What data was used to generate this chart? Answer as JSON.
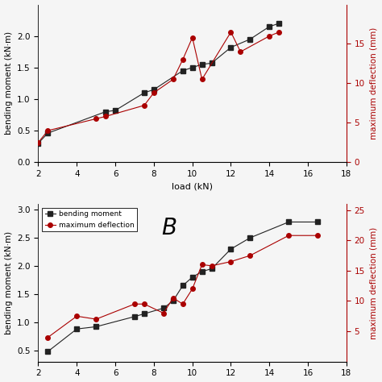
{
  "top": {
    "bm_x": [
      2.0,
      2.5,
      5.5,
      6.0,
      7.5,
      8.0,
      9.5,
      10.0,
      10.5,
      11.0,
      12.0,
      13.0,
      14.0,
      14.5
    ],
    "bm_y": [
      0.3,
      0.46,
      0.8,
      0.82,
      1.1,
      1.15,
      1.45,
      1.5,
      1.55,
      1.57,
      1.82,
      1.95,
      2.15,
      2.2
    ],
    "def_x": [
      2.0,
      2.5,
      5.0,
      5.5,
      7.5,
      8.0,
      9.0,
      9.5,
      10.0,
      10.5,
      12.0,
      12.5,
      14.0,
      14.5
    ],
    "def_y": [
      2.5,
      4.0,
      5.5,
      5.8,
      7.2,
      8.8,
      10.5,
      13.0,
      15.8,
      10.5,
      16.5,
      14.0,
      16.0,
      16.5
    ],
    "xlabel": "load (kN)",
    "ylabel_left": "bending moment (kN·m)",
    "ylabel_right": "maximum deflection (mm)",
    "xlim": [
      2,
      18
    ],
    "ylim_left": [
      0.0,
      2.5
    ],
    "ylim_right": [
      0,
      20
    ],
    "xticks": [
      2,
      4,
      6,
      8,
      10,
      12,
      14,
      16,
      18
    ],
    "yticks_left": [
      0.0,
      0.5,
      1.0,
      1.5,
      2.0
    ],
    "yticks_right": [
      0,
      5,
      10,
      15
    ]
  },
  "bottom": {
    "bm_x": [
      2.5,
      4.0,
      5.0,
      7.0,
      7.5,
      8.5,
      9.0,
      9.5,
      10.0,
      10.5,
      11.0,
      12.0,
      13.0,
      15.0,
      16.5
    ],
    "bm_y": [
      0.48,
      0.88,
      0.92,
      1.1,
      1.15,
      1.25,
      1.38,
      1.65,
      1.8,
      1.9,
      1.95,
      2.3,
      2.5,
      2.78,
      2.78
    ],
    "def_x": [
      2.5,
      4.0,
      5.0,
      7.0,
      7.5,
      8.5,
      9.0,
      9.5,
      10.0,
      10.5,
      11.0,
      12.0,
      13.0,
      15.0,
      16.5
    ],
    "def_y": [
      4.0,
      7.5,
      7.0,
      9.5,
      9.5,
      8.0,
      10.5,
      9.5,
      12.0,
      16.0,
      15.8,
      16.5,
      17.5,
      20.8,
      20.8
    ],
    "xlabel": "",
    "ylabel_left": "bending moment (kN·m)",
    "ylabel_right": "maximum deflection (mm)",
    "xlim": [
      2,
      18
    ],
    "ylim_left": [
      0.3,
      3.1
    ],
    "ylim_right": [
      0,
      26
    ],
    "xticks": [
      2,
      4,
      6,
      8,
      10,
      12,
      14,
      16,
      18
    ],
    "yticks_left": [
      0.5,
      1.0,
      1.5,
      2.0,
      2.5,
      3.0
    ],
    "yticks_right": [
      5,
      10,
      15,
      20,
      25
    ],
    "label_bm": "bending moment",
    "label_def": "maximum deflection",
    "panel_label": "B"
  },
  "line_color_black": "#222222",
  "line_color_red": "#aa0000",
  "bg_color": "#f5f5f5",
  "marker_black": "s",
  "marker_red": "o",
  "markersize": 4,
  "linewidth": 0.8
}
